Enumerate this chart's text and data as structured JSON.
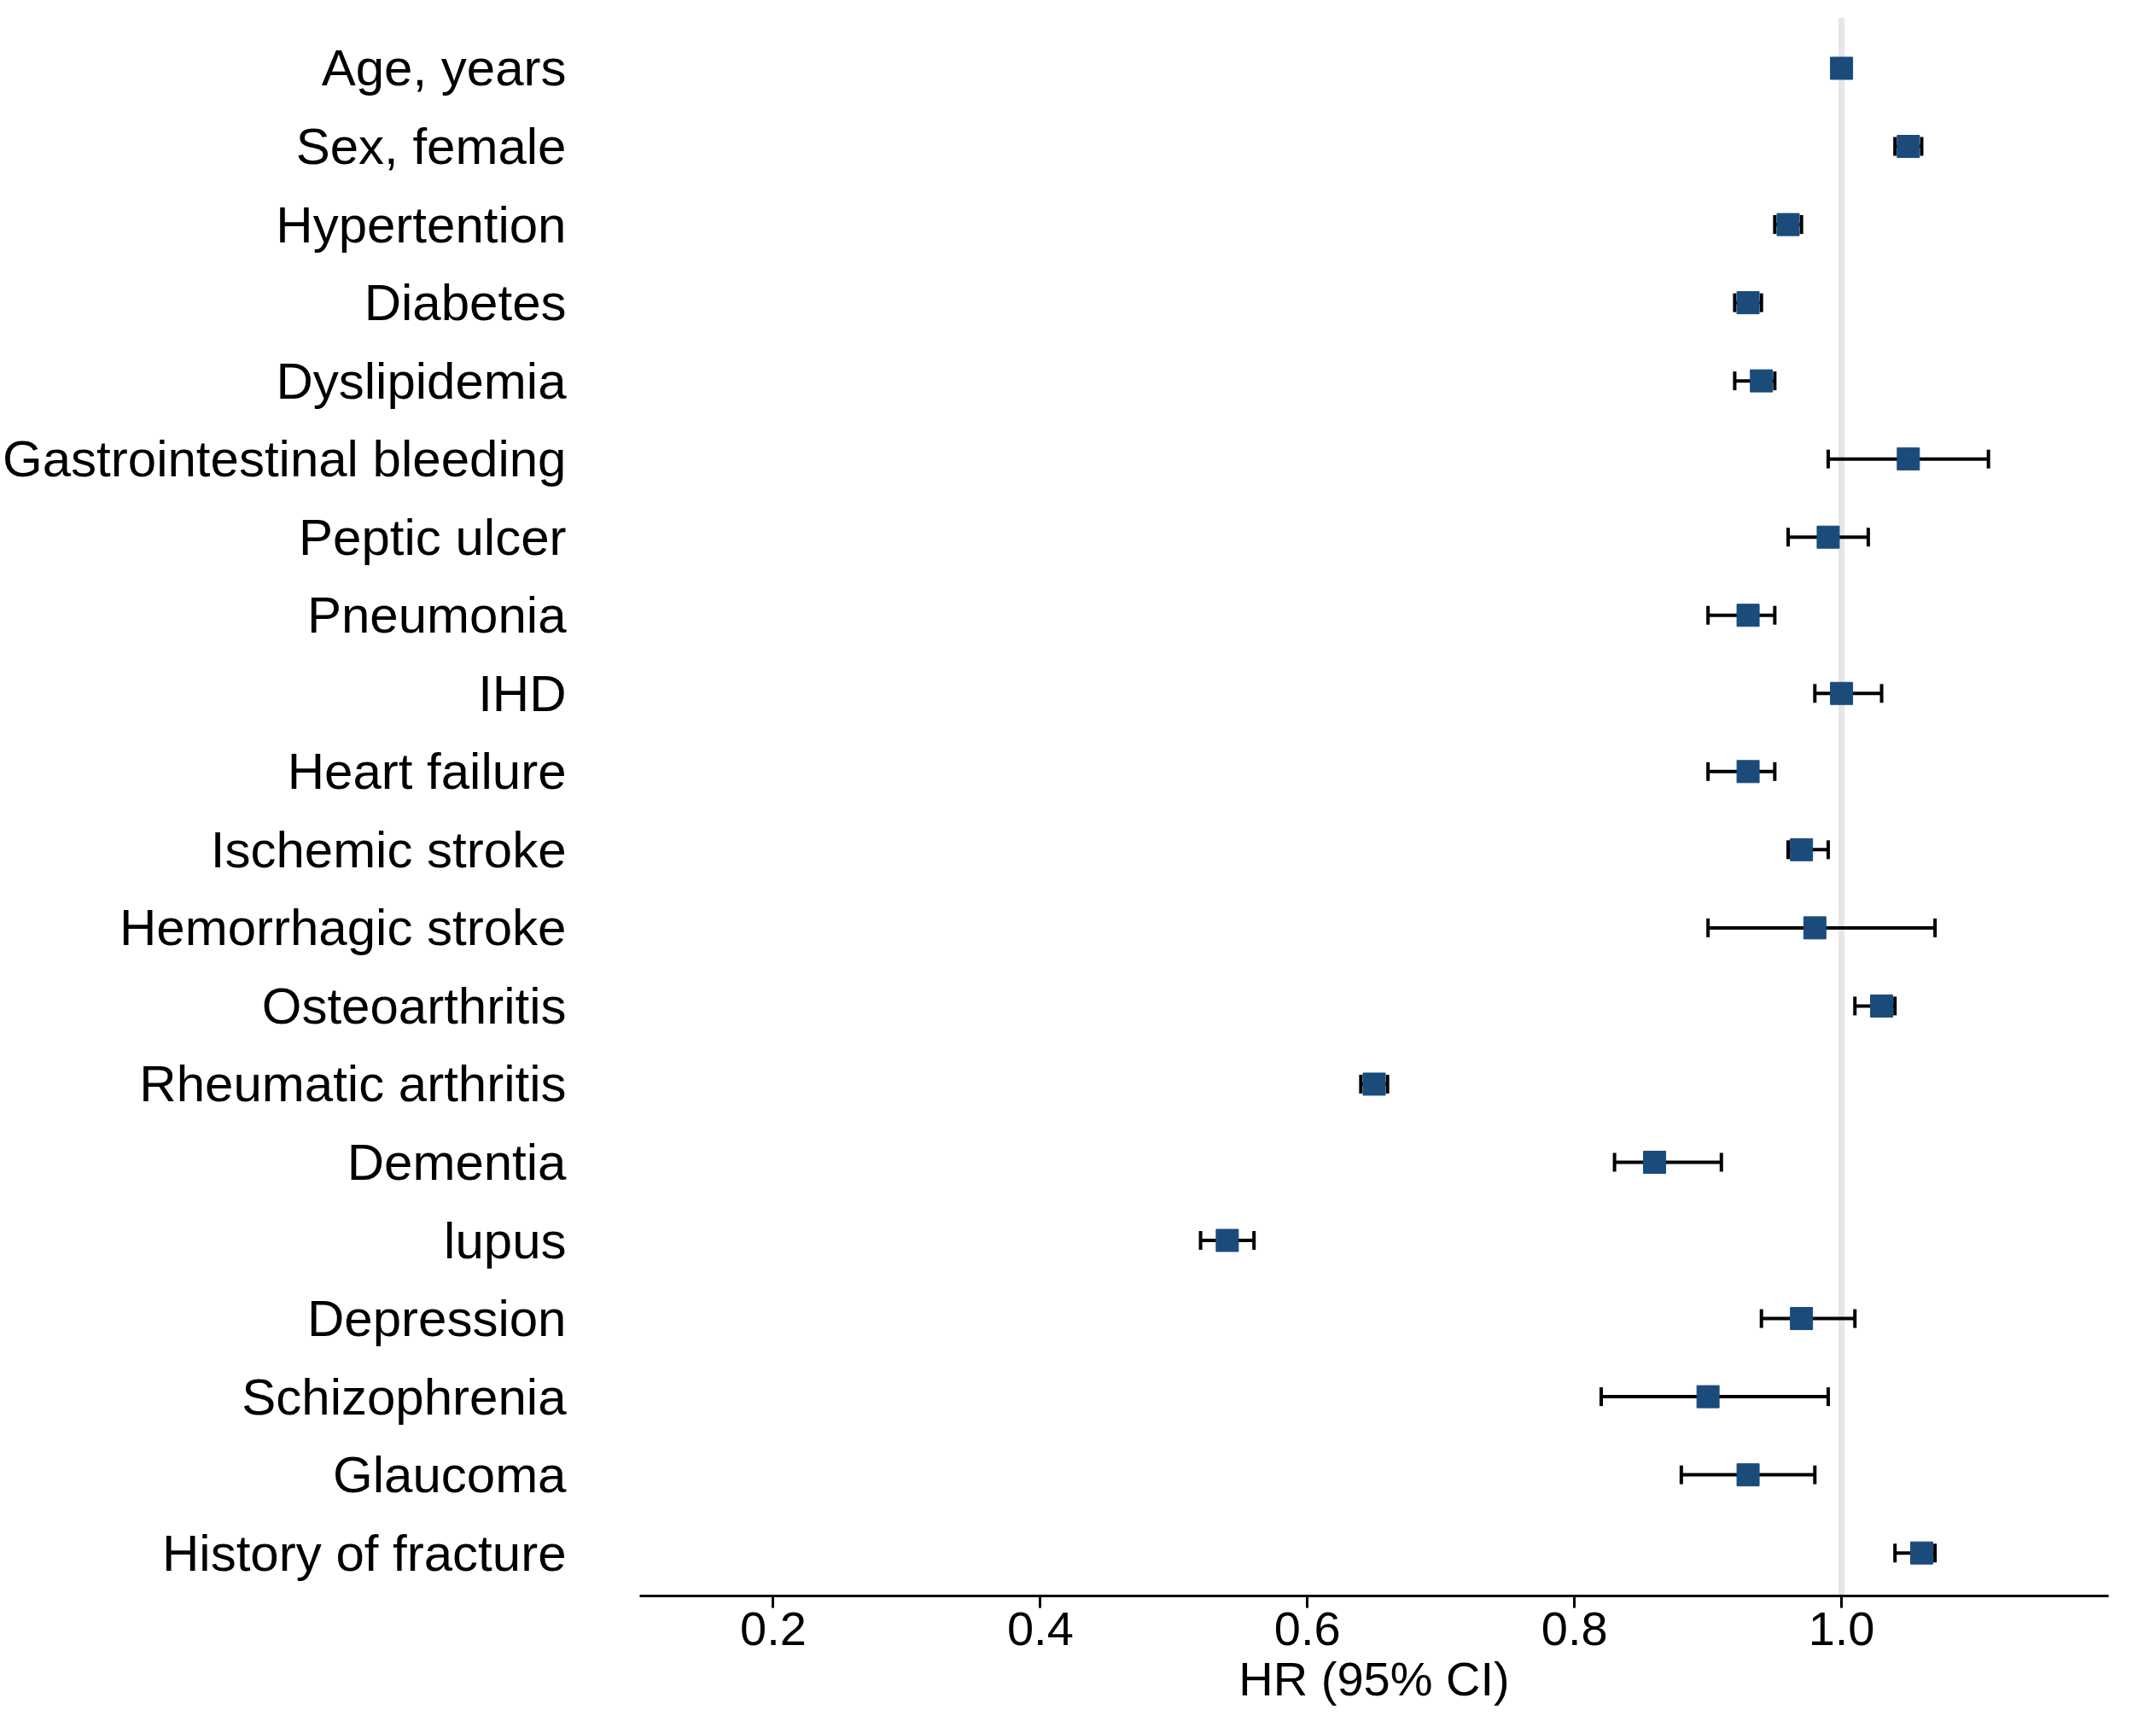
{
  "chart_data": {
    "type": "scatter",
    "orientation": "horizontal",
    "xlabel": "HR (95% CI)",
    "categories": [
      "Age, years",
      "Sex, female",
      "Hypertention",
      "Diabetes",
      "Dyslipidemia",
      "Gastrointestinal bleeding",
      "Peptic ulcer",
      "Pneumonia",
      "IHD",
      "Heart failure",
      "Ischemic stroke",
      "Hemorrhagic stroke",
      "Osteoarthritis",
      "Rheumatic arthritis",
      "Dementia",
      "lupus",
      "Depression",
      "Schizophrenia",
      "Glaucoma",
      "History of fracture"
    ],
    "series": [
      {
        "color": "#1a4b7b",
        "values": [
          1.0,
          1.05,
          0.96,
          0.93,
          0.94,
          1.05,
          0.99,
          0.93,
          1.0,
          0.93,
          0.97,
          0.98,
          1.03,
          0.65,
          0.86,
          0.54,
          0.97,
          0.9,
          0.93,
          1.06
        ],
        "errors": [
          null,
          [
            1.04,
            1.06
          ],
          [
            0.95,
            0.97
          ],
          [
            0.92,
            0.94
          ],
          [
            0.92,
            0.95
          ],
          [
            0.99,
            1.11
          ],
          [
            0.96,
            1.02
          ],
          [
            0.9,
            0.95
          ],
          [
            0.98,
            1.03
          ],
          [
            0.9,
            0.95
          ],
          [
            0.96,
            0.99
          ],
          [
            0.9,
            1.07
          ],
          [
            1.01,
            1.04
          ],
          [
            0.64,
            0.66
          ],
          [
            0.83,
            0.91
          ],
          [
            0.52,
            0.56
          ],
          [
            0.94,
            1.01
          ],
          [
            0.82,
            0.99
          ],
          [
            0.88,
            0.98
          ],
          [
            1.04,
            1.07
          ]
        ]
      }
    ],
    "xlim": [
      0.1,
      1.2
    ],
    "xticks": [
      {
        "value": 0.2,
        "label": "0.2"
      },
      {
        "value": 0.4,
        "label": "0.4"
      },
      {
        "value": 0.6,
        "label": "0.6"
      },
      {
        "value": 0.8,
        "label": "0.8"
      },
      {
        "value": 1.0,
        "label": "1.0"
      }
    ],
    "ref_lines": [
      {
        "axis": "x",
        "value": 1.0,
        "label": null,
        "color": "#e6e6e6"
      }
    ],
    "marker": "square",
    "grid": false
  }
}
